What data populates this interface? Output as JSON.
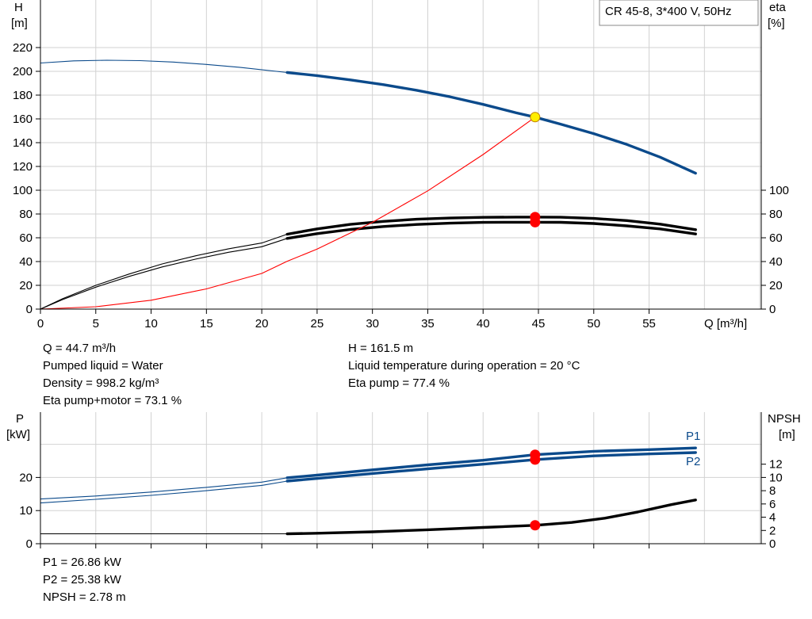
{
  "chart_data": [
    {
      "type": "line",
      "title": "CR 45-8, 3*400 V, 50Hz",
      "xlabel": "Q [m³/h]",
      "xlim": [
        0,
        65
      ],
      "xticks": [
        0,
        5,
        10,
        15,
        20,
        25,
        30,
        35,
        40,
        45,
        50,
        55
      ],
      "left_axis": {
        "label_line1": "H",
        "label_line2": "[m]",
        "ylim": [
          0,
          220
        ],
        "ticks": [
          0,
          20,
          40,
          60,
          80,
          100,
          120,
          140,
          160,
          180,
          200,
          220
        ]
      },
      "right_axis": {
        "label_line1": "eta",
        "label_line2": "[%]",
        "ylim": [
          0,
          220
        ],
        "ticks": [
          0,
          20,
          40,
          60,
          80,
          100
        ]
      },
      "grid": true,
      "series": [
        {
          "color": "#0b4a8b",
          "axis": "left",
          "thin_until_x": 22.3,
          "x": [
            0,
            3,
            6,
            9,
            12,
            15,
            18,
            22.3,
            25,
            28,
            31,
            34,
            37,
            40,
            43,
            44.7,
            47,
            50,
            53,
            56,
            59.2
          ],
          "y": [
            207,
            208.8,
            209.3,
            209,
            207.8,
            205.8,
            203.4,
            199,
            196.4,
            192.8,
            188.8,
            184.1,
            178.6,
            172.2,
            165.1,
            161.5,
            155.6,
            147.6,
            138.5,
            127.8,
            114.3
          ]
        },
        {
          "color": "#000000",
          "axis": "right",
          "thin_until_x": 22.3,
          "x": [
            0,
            2,
            5,
            8,
            11,
            14,
            17,
            20,
            22.3,
            25,
            28,
            31,
            34,
            37,
            40,
            43,
            44.7,
            47,
            50,
            53,
            56,
            59.2
          ],
          "y": [
            0,
            8.7,
            20,
            29.5,
            38,
            44.8,
            50.7,
            55.6,
            63,
            67.5,
            71.3,
            73.8,
            75.6,
            76.6,
            77.2,
            77.4,
            77.4,
            77.3,
            76.3,
            74.5,
            71.5,
            66.8
          ]
        },
        {
          "color": "#000000",
          "axis": "right",
          "thin_until_x": 22.3,
          "x": [
            0,
            2,
            5,
            8,
            11,
            14,
            17,
            20,
            22.3,
            25,
            28,
            31,
            34,
            37,
            40,
            43,
            44.7,
            47,
            50,
            53,
            56,
            59.2
          ],
          "y": [
            0,
            8,
            18.5,
            27.5,
            35.5,
            42,
            47.8,
            52.5,
            59.5,
            63.5,
            67,
            69.5,
            71.2,
            72.3,
            72.9,
            73.1,
            73.1,
            73,
            72,
            70,
            67.5,
            63.2
          ]
        },
        {
          "color": "#ff0000",
          "axis": "left",
          "thin_until_x": 100,
          "x": [
            0,
            5,
            10,
            15,
            20,
            22.3,
            25,
            30,
            35,
            40,
            44.7
          ],
          "y": [
            0,
            2,
            7.5,
            17,
            30,
            40.3,
            50.5,
            73,
            99.5,
            130,
            161.5
          ]
        }
      ],
      "duty_points": [
        {
          "x": 44.7,
          "y": 161.5,
          "axis": "left",
          "color": "#ffee00"
        },
        {
          "x": 44.7,
          "y": 77.4,
          "axis": "right",
          "color": "#ff0000"
        },
        {
          "x": 44.7,
          "y": 73.1,
          "axis": "right",
          "color": "#ff0000"
        }
      ]
    },
    {
      "type": "line",
      "xlim": [
        0,
        65
      ],
      "left_axis": {
        "label_line1": "P",
        "label_line2": "[kW]",
        "ylim": [
          0,
          36
        ],
        "ticks": [
          0,
          10,
          20
        ]
      },
      "right_axis": {
        "label_line1": "NPSH",
        "label_line2": "[m]",
        "ylim": [
          0,
          18
        ],
        "ticks": [
          0,
          2,
          4,
          6,
          8,
          10,
          12
        ]
      },
      "grid": true,
      "series": [
        {
          "name": "P1",
          "color": "#0b4a8b",
          "axis": "left",
          "thin_until_x": 22.3,
          "x": [
            0,
            5,
            10,
            15,
            20,
            22.3,
            25,
            30,
            35,
            40,
            44.7,
            50,
            55,
            59.2
          ],
          "y": [
            13.5,
            14.4,
            15.6,
            17,
            18.6,
            19.9,
            20.7,
            22.3,
            23.8,
            25.2,
            26.86,
            27.9,
            28.4,
            28.9
          ]
        },
        {
          "name": "P2",
          "color": "#0b4a8b",
          "axis": "left",
          "thin_until_x": 22.3,
          "x": [
            0,
            5,
            10,
            15,
            20,
            22.3,
            25,
            30,
            35,
            40,
            44.7,
            50,
            55,
            59.2
          ],
          "y": [
            12.3,
            13.4,
            14.6,
            16,
            17.6,
            18.9,
            19.7,
            21.2,
            22.6,
            24,
            25.38,
            26.5,
            27.1,
            27.5
          ]
        },
        {
          "color": "#000000",
          "axis": "right",
          "thin_until_x": 22.3,
          "x": [
            0,
            10,
            20,
            22.3,
            25,
            30,
            35,
            40,
            44.7,
            48,
            51,
            54,
            57,
            59.2
          ],
          "y": [
            1.5,
            1.5,
            1.5,
            1.5,
            1.58,
            1.8,
            2.1,
            2.45,
            2.78,
            3.2,
            3.85,
            4.8,
            5.9,
            6.6
          ]
        }
      ],
      "duty_points": [
        {
          "x": 44.7,
          "y": 26.86,
          "axis": "left",
          "color": "#ff0000"
        },
        {
          "x": 44.7,
          "y": 25.38,
          "axis": "left",
          "color": "#ff0000"
        },
        {
          "x": 44.7,
          "y": 2.78,
          "axis": "right",
          "color": "#ff0000"
        }
      ]
    }
  ],
  "info": {
    "left": [
      "Q = 44.7 m³/h",
      "Pumped liquid = Water",
      "Density = 998.2 kg/m³",
      "Eta pump+motor = 73.1 %"
    ],
    "right": [
      "H = 161.5 m",
      "Liquid temperature during operation = 20 °C",
      "Eta pump = 77.4 %"
    ],
    "bottom": [
      "P1 = 26.86 kW",
      "P2 = 25.38 kW",
      "NPSH = 2.78 m"
    ]
  }
}
